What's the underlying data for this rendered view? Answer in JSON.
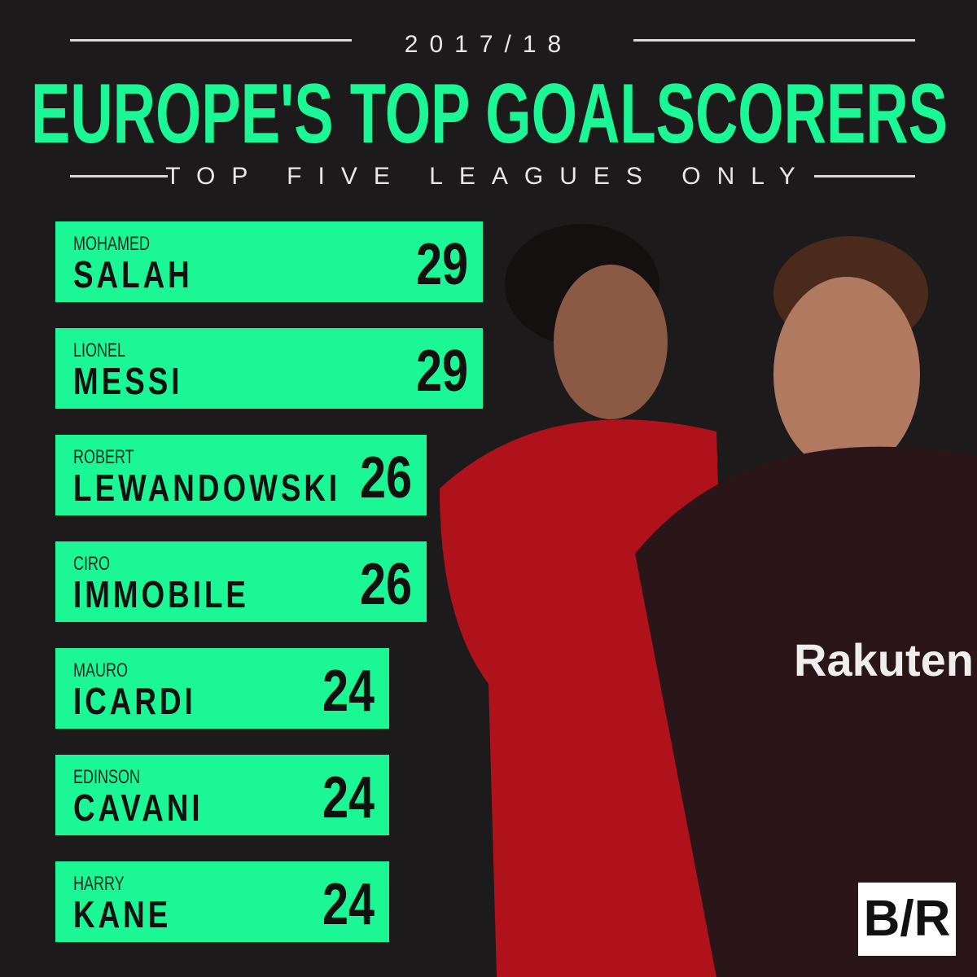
{
  "header": {
    "season": "2017/18",
    "title": "EUROPE'S TOP GOALSCORERS",
    "subtitle": "TOP FIVE LEAGUES ONLY"
  },
  "colors": {
    "accent": "#1cf795",
    "background": "#1c1a1a"
  },
  "logo": "B/R",
  "chart_data": {
    "type": "bar",
    "orientation": "horizontal",
    "title": "EUROPE'S TOP GOALSCORERS",
    "subtitle": "TOP FIVE LEAGUES ONLY",
    "categories": [
      {
        "first": "MOHAMED",
        "last": "SALAH"
      },
      {
        "first": "LIONEL",
        "last": "MESSI"
      },
      {
        "first": "ROBERT",
        "last": "LEWANDOWSKI"
      },
      {
        "first": "CIRO",
        "last": "IMMOBILE"
      },
      {
        "first": "MAURO",
        "last": "ICARDI"
      },
      {
        "first": "EDINSON",
        "last": "CAVANI"
      },
      {
        "first": "HARRY",
        "last": "KANE"
      }
    ],
    "values": [
      29,
      29,
      26,
      26,
      24,
      24,
      24
    ],
    "bar_color": "#1cf795",
    "grid": false
  }
}
